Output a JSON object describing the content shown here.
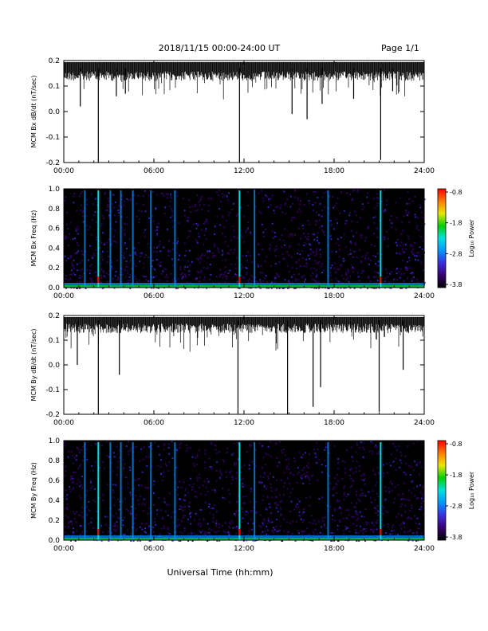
{
  "header": {
    "title": "2018/11/15  00:00-24:00 UT",
    "page": "Page 1/1"
  },
  "footer": {
    "xlabel": "Universal Time (hh:mm)"
  },
  "colorbar": {
    "label": "Log₁₀ Power",
    "ticks": [
      "-0.8",
      "-1.8",
      "-2.8",
      "-3.8"
    ],
    "colors": [
      "#000000",
      "#3a0070",
      "#3c2de0",
      "#0096ff",
      "#00e0e0",
      "#00d000",
      "#e8e800",
      "#ff7a00",
      "#ff0000"
    ]
  },
  "chart_data": [
    {
      "type": "line",
      "ylabel": "MCM Bx dB/dt (nT/sec)",
      "xlim": [
        0,
        24
      ],
      "ylim": [
        -0.2,
        0.2
      ],
      "xticks": [
        "00:00",
        "06:00",
        "12:00",
        "18:00",
        "24:00"
      ],
      "yticks": [
        "0.2",
        "0.1",
        "0.0",
        "-0.1",
        "-0.2"
      ],
      "base": 0.17,
      "spikes": [
        {
          "x": 1.1,
          "y": 0.02
        },
        {
          "x": 2.3,
          "y": -0.2
        },
        {
          "x": 3.5,
          "y": 0.06
        },
        {
          "x": 4.1,
          "y": 0.07
        },
        {
          "x": 11.7,
          "y": -0.2
        },
        {
          "x": 15.2,
          "y": -0.01
        },
        {
          "x": 16.2,
          "y": -0.03
        },
        {
          "x": 17.2,
          "y": 0.03
        },
        {
          "x": 19.3,
          "y": 0.05
        },
        {
          "x": 21.1,
          "y": -0.19
        },
        {
          "x": 21.9,
          "y": 0.08
        }
      ]
    },
    {
      "type": "heatmap",
      "ylabel": "MCM Bx Freq (Hz)",
      "xlim": [
        0,
        24
      ],
      "ylim": [
        0,
        1.0
      ],
      "xticks": [
        "00:00",
        "06:00",
        "12:00",
        "18:00",
        "24:00"
      ],
      "yticks": [
        "1.0",
        "0.8",
        "0.6",
        "0.4",
        "0.2",
        "0.0"
      ],
      "clim": [
        -3.8,
        -0.8
      ],
      "bright_lines": [
        1.4,
        2.3,
        3.1,
        3.8,
        4.6,
        5.8,
        7.4,
        11.7,
        12.7,
        17.6,
        21.1
      ]
    },
    {
      "type": "line",
      "ylabel": "MCM By dB/dt (nT/sec)",
      "xlim": [
        0,
        24
      ],
      "ylim": [
        -0.2,
        0.2
      ],
      "xticks": [
        "00:00",
        "06:00",
        "12:00",
        "18:00",
        "24:00"
      ],
      "yticks": [
        "0.2",
        "0.1",
        "0.0",
        "-0.1",
        "-0.2"
      ],
      "base": 0.18,
      "spikes": [
        {
          "x": 0.9,
          "y": 0.0
        },
        {
          "x": 2.3,
          "y": -0.2
        },
        {
          "x": 3.7,
          "y": -0.04
        },
        {
          "x": 11.6,
          "y": -0.2
        },
        {
          "x": 14.9,
          "y": -0.2
        },
        {
          "x": 16.6,
          "y": -0.17
        },
        {
          "x": 17.1,
          "y": -0.09
        },
        {
          "x": 21.0,
          "y": -0.19
        },
        {
          "x": 22.6,
          "y": -0.02
        }
      ]
    },
    {
      "type": "heatmap",
      "ylabel": "MCM By Freq (Hz)",
      "xlim": [
        0,
        24
      ],
      "ylim": [
        0,
        1.0
      ],
      "xticks": [
        "00:00",
        "06:00",
        "12:00",
        "18:00",
        "24:00"
      ],
      "yticks": [
        "1.0",
        "0.8",
        "0.6",
        "0.4",
        "0.2",
        "0.0"
      ],
      "clim": [
        -3.8,
        -0.8
      ],
      "bright_lines": [
        1.4,
        2.3,
        3.1,
        3.8,
        4.6,
        5.8,
        7.4,
        11.7,
        12.7,
        17.6,
        21.1
      ]
    }
  ]
}
